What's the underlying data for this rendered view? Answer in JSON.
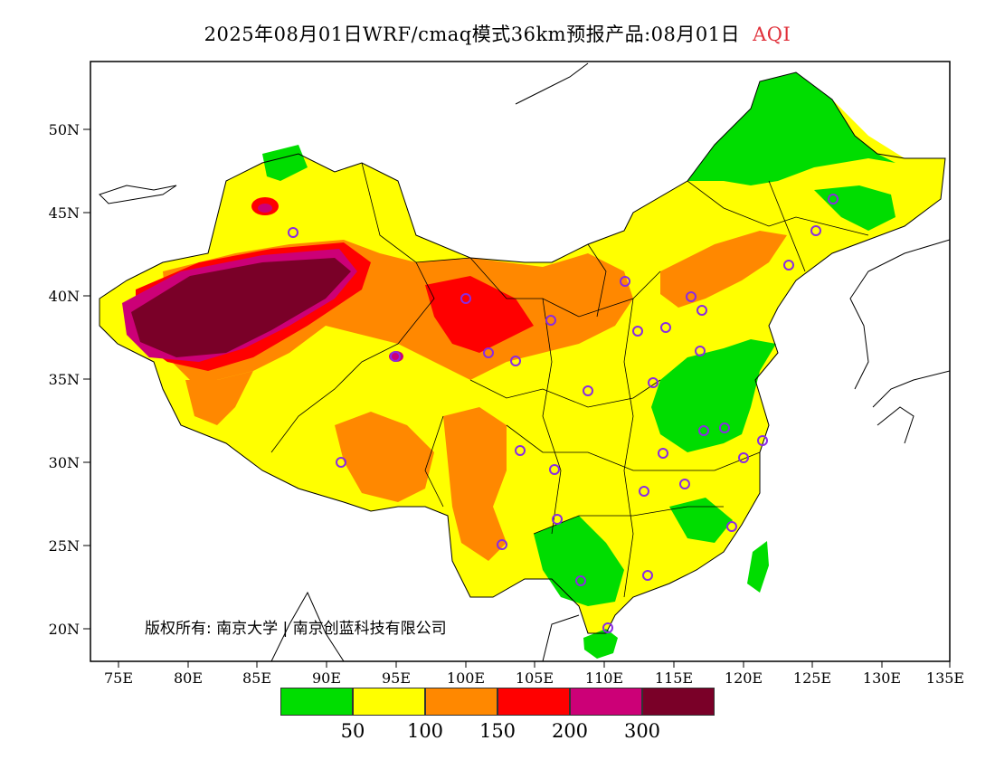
{
  "title": {
    "main": "2025年08月01日WRF/cmaq模式36km预报产品:08月01日",
    "variable": "AQI"
  },
  "axes": {
    "lat_ticks": [
      "50N",
      "45N",
      "40N",
      "35N",
      "30N",
      "25N",
      "20N"
    ],
    "lon_ticks": [
      "75E",
      "80E",
      "85E",
      "90E",
      "95E",
      "100E",
      "105E",
      "110E",
      "115E",
      "120E",
      "125E",
      "130E",
      "135E"
    ]
  },
  "copyright": "版权所有: 南京大学 | 南京创蓝科技有限公司",
  "legend": {
    "colors": [
      "#00dd00",
      "#ffff00",
      "#ff8800",
      "#ff0000",
      "#cc0077",
      "#7a0028"
    ],
    "labels": [
      "50",
      "100",
      "150",
      "200",
      "300"
    ]
  },
  "colors": {
    "station_marker": "#8a2be2",
    "frame": "#000000"
  }
}
